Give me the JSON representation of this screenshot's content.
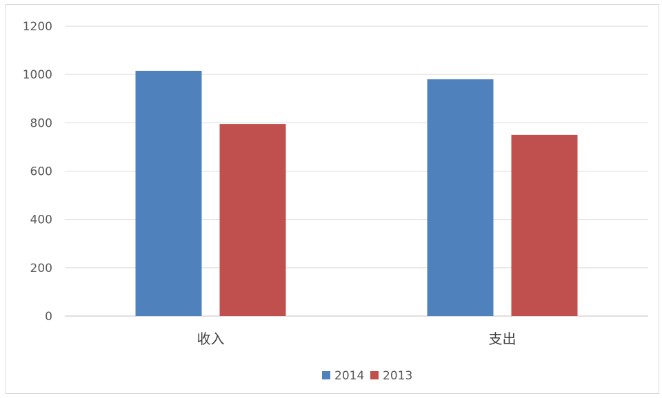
{
  "chart_data": {
    "type": "bar",
    "categories": [
      "收入",
      "支出"
    ],
    "series": [
      {
        "name": "2014",
        "values": [
          1015,
          980
        ],
        "color": "#4f81bd"
      },
      {
        "name": "2013",
        "values": [
          795,
          750
        ],
        "color": "#c0504d"
      }
    ],
    "yticks": [
      "0",
      "200",
      "400",
      "600",
      "800",
      "1000",
      "1200"
    ],
    "ylim": [
      0,
      1200
    ],
    "grid": true,
    "legend": "bottom-center"
  }
}
